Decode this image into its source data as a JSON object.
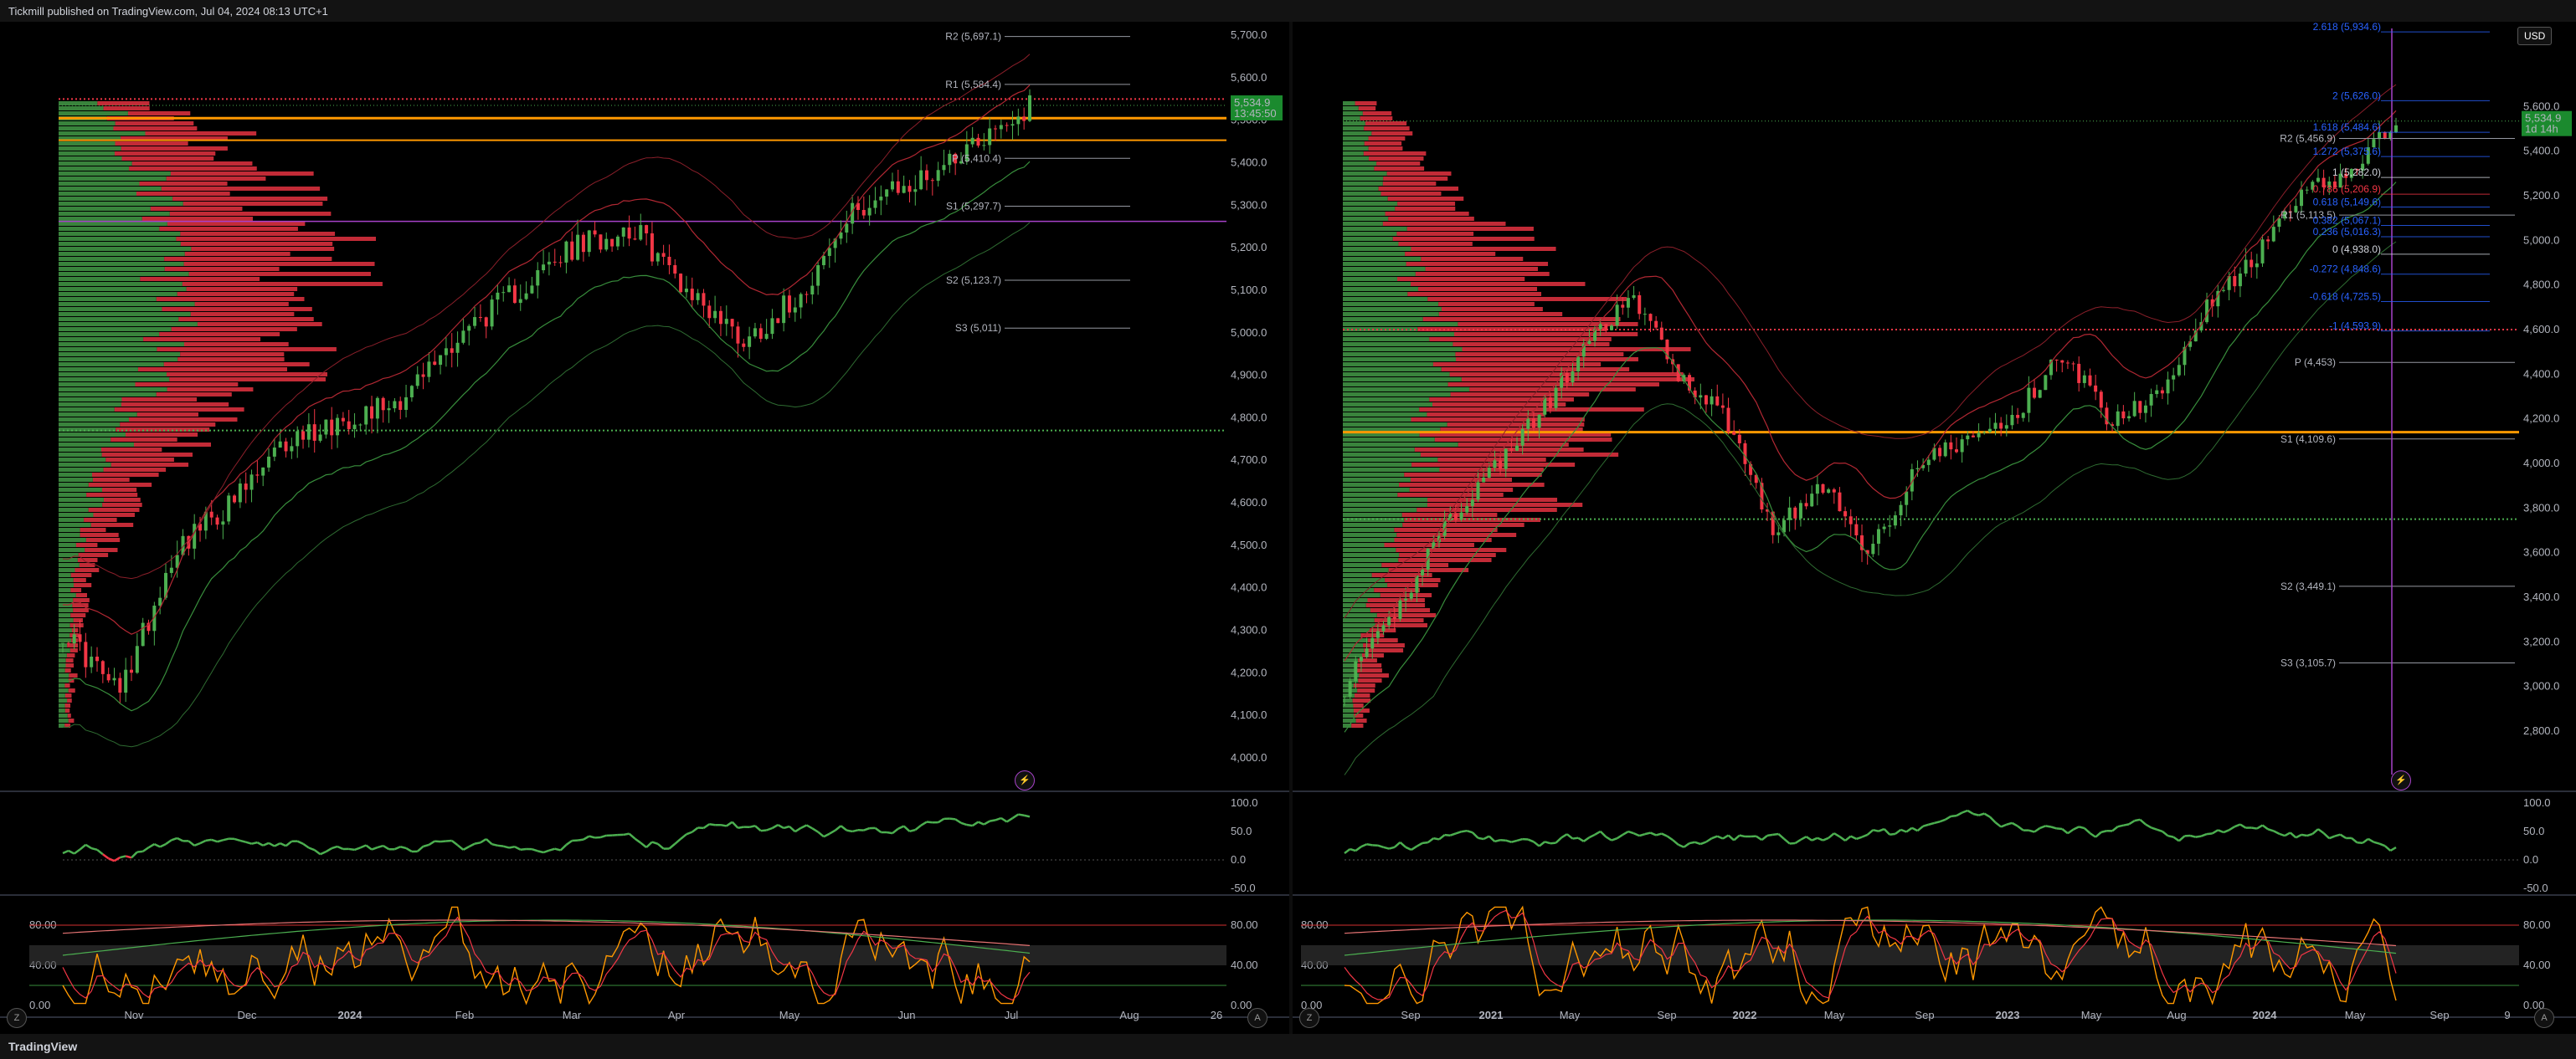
{
  "header": {
    "published": "Tickmill published on TradingView.com, Jul 04, 2024 08:13 UTC+1"
  },
  "footer": {
    "brand": "TradingView"
  },
  "colors": {
    "up": "#4caf50",
    "down": "#f23645",
    "orange": "#ff9800",
    "purple": "#a742c9",
    "fib": "#2962ff",
    "bg": "#000000"
  },
  "buttons": {
    "goto": "⚡",
    "z": "Z",
    "a": "A"
  },
  "left_chart": {
    "price_ticks": [
      "5,700.0",
      "5,600.0",
      "5,500.0",
      "5,400.0",
      "5,300.0",
      "5,200.0",
      "5,100.0",
      "5,000.0",
      "4,900.0",
      "4,800.0",
      "4,700.0",
      "4,600.0",
      "4,500.0",
      "4,400.0",
      "4,300.0",
      "4,200.0",
      "4,100.0",
      "4,000.0"
    ],
    "price_tick_values": [
      5700,
      5600,
      5500,
      5400,
      5300,
      5200,
      5100,
      5000,
      4900,
      4800,
      4700,
      4600,
      4500,
      4400,
      4300,
      4200,
      4100,
      4000
    ],
    "last_price": "5,534.9",
    "countdown": "13:45:50",
    "time_ticks": [
      "Nov",
      "Dec",
      "2024",
      "Feb",
      "Mar",
      "Apr",
      "May",
      "Jun",
      "Jul",
      "Aug",
      "26"
    ],
    "pivot_labels": [
      "R2 (5,697.1)",
      "R1 (5,584.4)",
      "P (5,410.4)",
      "S1 (5,297.7)",
      "S2 (5,123.7)",
      "S3 (5,011)"
    ],
    "pivot_values": [
      5697.1,
      5584.4,
      5410.4,
      5297.7,
      5123.7,
      5011
    ],
    "rsi_ticks": [
      "100.0",
      "50.0",
      "0.0",
      "-50.0"
    ],
    "stoch_ticks": [
      "80.00",
      "40.00",
      "0.00"
    ],
    "stoch_ticks_right": [
      "80.00",
      "40.00",
      "0.00"
    ]
  },
  "right_chart": {
    "currency": "USD",
    "price_ticks": [
      "5,600.0",
      "5,400.0",
      "5,200.0",
      "5,000.0",
      "4,800.0",
      "4,600.0",
      "4,400.0",
      "4,200.0",
      "4,000.0",
      "3,800.0",
      "3,600.0",
      "3,400.0",
      "3,200.0",
      "3,000.0",
      "2,800.0"
    ],
    "price_tick_values": [
      5600,
      5400,
      5200,
      5000,
      4800,
      4600,
      4400,
      4200,
      4000,
      3800,
      3600,
      3400,
      3200,
      3000,
      2800
    ],
    "last_price": "5,534.9",
    "countdown": "1d 14h",
    "time_ticks": [
      "Sep",
      "2021",
      "May",
      "Sep",
      "2022",
      "May",
      "Sep",
      "2023",
      "May",
      "Aug",
      "2024",
      "May",
      "Sep",
      "9"
    ],
    "pivot_labels": [
      "R2 (5,456.9)",
      "R1 (5,113.5)",
      "P (4,453)",
      "S1 (4,109.6)",
      "S2 (3,449.1)",
      "S3 (3,105.7)"
    ],
    "pivot_values": [
      5456.9,
      5113.5,
      4453,
      4109.6,
      3449.1,
      3105.7
    ],
    "fib_labels": [
      "2.618 (5,934.6)",
      "2 (5,626.0)",
      "1.618 (5,484.6)",
      "1.272 (5,375.6)",
      "1 (5,282.0)",
      "0.786 (5,206.9)",
      "0.618 (5,149.6)",
      "0.382 (5,067.1)",
      "0.236 (5,016.3)",
      "0 (4,938.0)",
      "-0.272 (4,848.6)",
      "-0.618 (4,725.5)",
      "-1 (4,593.9)"
    ],
    "fib_values": [
      5934.6,
      5626.0,
      5484.6,
      5375.6,
      5282.0,
      5206.9,
      5149.6,
      5067.1,
      5016.3,
      4938.0,
      4848.6,
      4725.5,
      4593.9
    ],
    "rsi_ticks": [
      "100.0",
      "50.0",
      "0.0",
      "-50.0"
    ],
    "stoch_ticks": [
      "80.00",
      "40.00",
      "0.00"
    ],
    "stoch_ticks_right": [
      "80.00",
      "40.00",
      "0.00"
    ]
  }
}
